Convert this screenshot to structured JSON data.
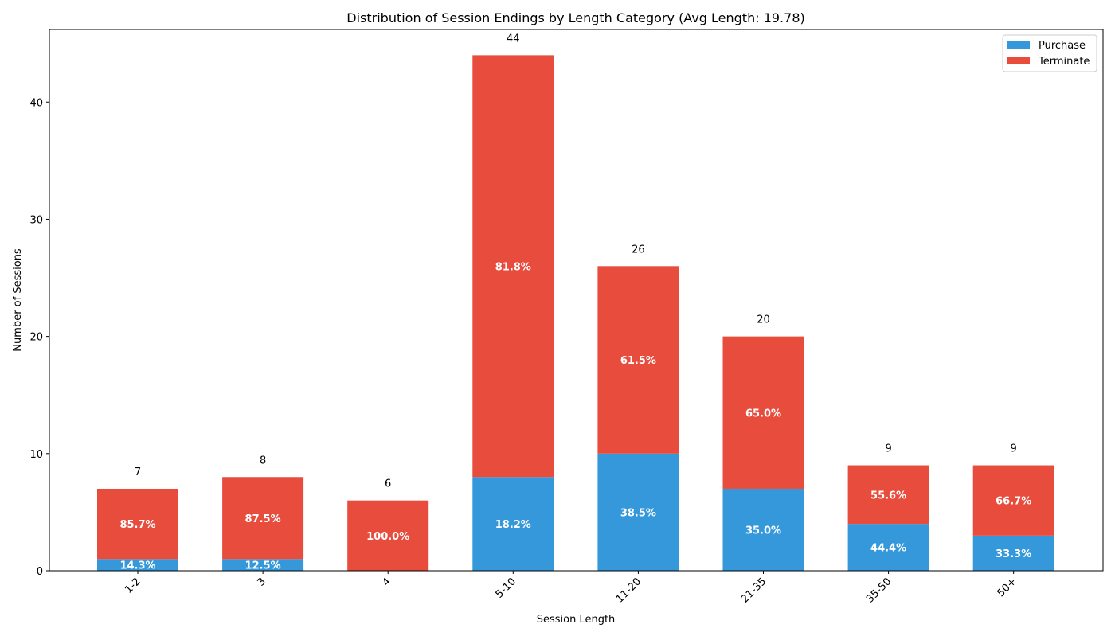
{
  "chart_data": {
    "type": "bar",
    "stacked": true,
    "title": "Distribution of Session Endings by Length Category (Avg Length: 19.78)",
    "xlabel": "Session Length",
    "ylabel": "Number of Sessions",
    "categories": [
      "1-2",
      "3",
      "4",
      "5-10",
      "11-20",
      "21-35",
      "35-50",
      "50+"
    ],
    "series": [
      {
        "name": "Purchase",
        "color": "#3498db",
        "values": [
          1,
          1,
          0,
          8,
          10,
          7,
          4,
          3
        ],
        "labels": [
          "14.3%",
          "12.5%",
          "",
          "18.2%",
          "38.5%",
          "35.0%",
          "44.4%",
          "33.3%"
        ]
      },
      {
        "name": "Terminate",
        "color": "#e74c3c",
        "values": [
          6,
          7,
          6,
          36,
          16,
          13,
          5,
          6
        ],
        "labels": [
          "85.7%",
          "87.5%",
          "100.0%",
          "81.8%",
          "61.5%",
          "65.0%",
          "55.6%",
          "66.7%"
        ]
      }
    ],
    "totals": [
      "7",
      "8",
      "6",
      "44",
      "26",
      "20",
      "9",
      "9"
    ],
    "yticks": [
      0,
      10,
      20,
      30,
      40
    ],
    "ylim": [
      0,
      46.2
    ],
    "xtick_rotation": 45,
    "grid": false,
    "legend_position": "top-right"
  }
}
